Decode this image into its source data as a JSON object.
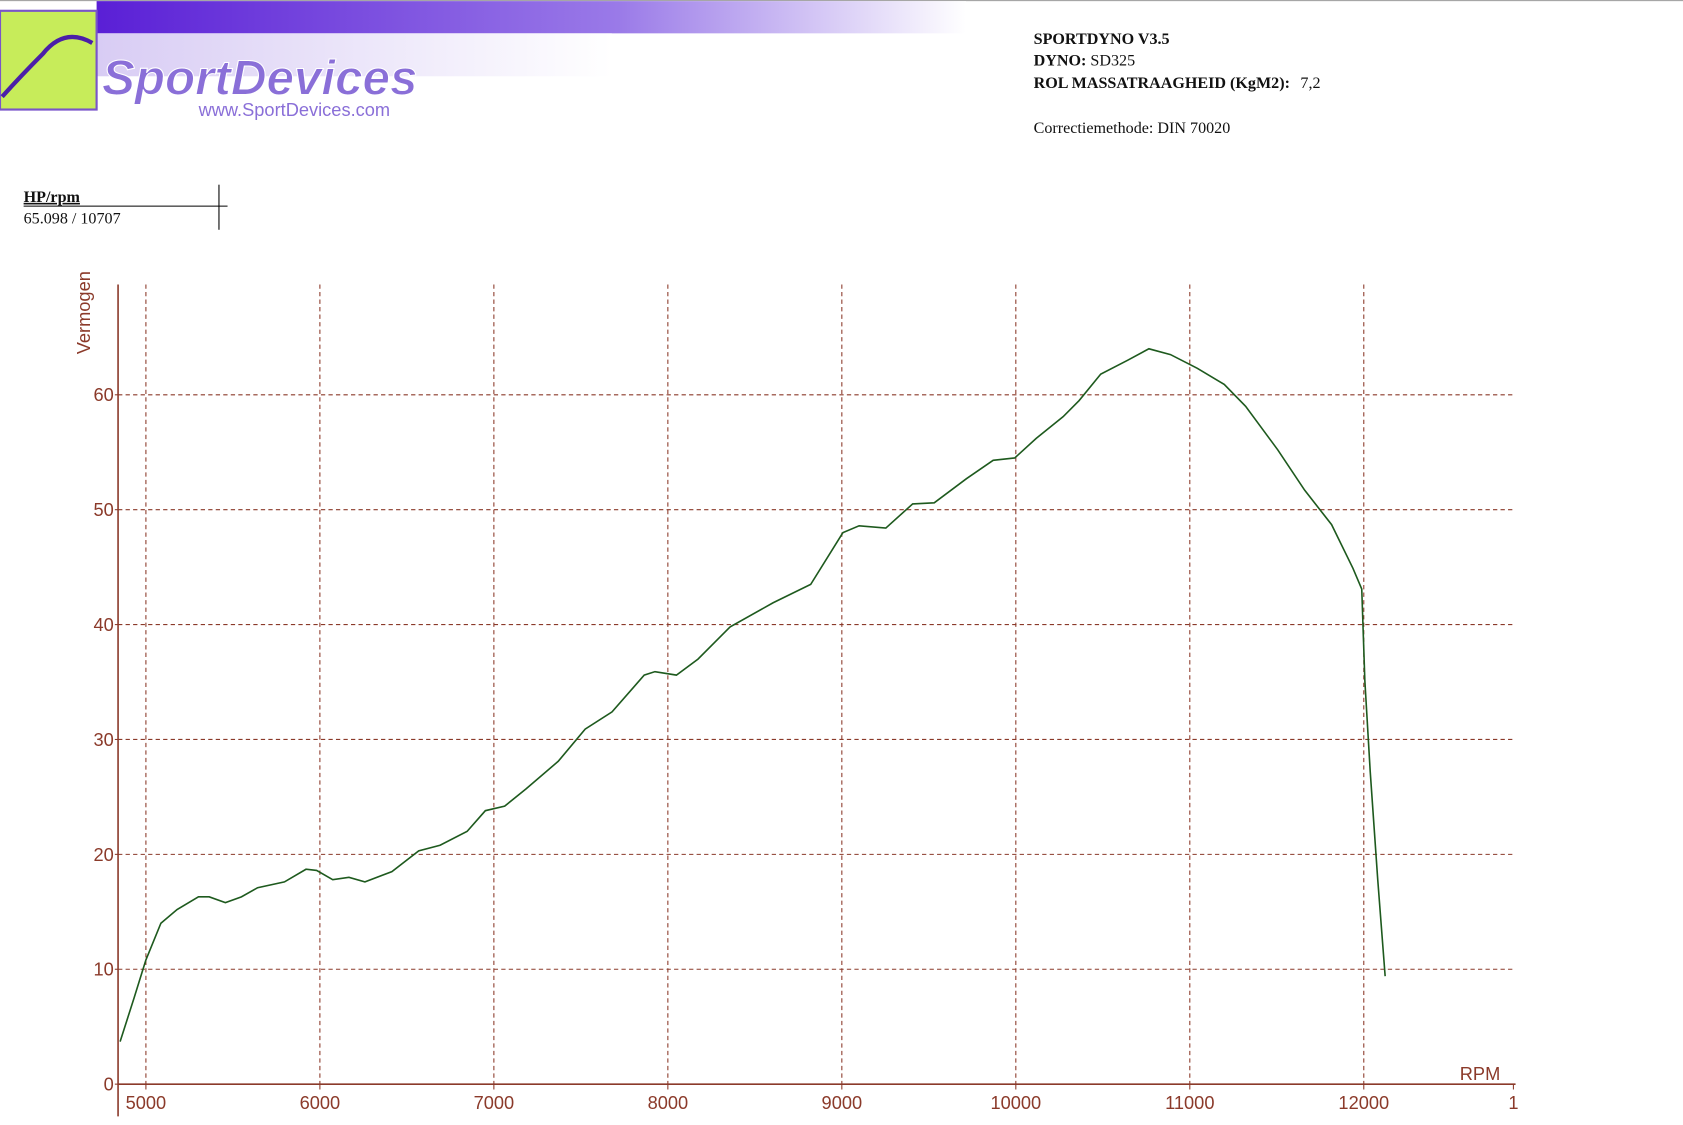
{
  "header": {
    "logo": "SportDevices",
    "logo_url": "www.SportDevices.com",
    "product": "SPORTDYNO V3.5",
    "dyno_label": "DYNO:",
    "dyno": "SD325",
    "inertia_label": "ROL MASSATRAAGHEID (KgM2):",
    "inertia": "7,2",
    "correction": "Correctiemethode: DIN 70020"
  },
  "readout": {
    "label": "HP/rpm",
    "value": "65.098 / 10707"
  },
  "chart_data": {
    "type": "line",
    "y_label": "Vermogen",
    "x_label": "RPM",
    "xlim": [
      4840,
      12860
    ],
    "ylim": [
      0,
      69.6
    ],
    "xticks": [
      5000,
      6000,
      7000,
      8000,
      9000,
      10000,
      11000,
      12000,
      {
        "value": 12860,
        "label": "1"
      }
    ],
    "yticks": [
      0,
      10,
      20,
      30,
      40,
      50,
      60
    ],
    "grid": true,
    "x": [
      4852,
      4932,
      5000,
      5086,
      5179,
      5302,
      5364,
      5457,
      5549,
      5642,
      5796,
      5920,
      5981,
      6074,
      6167,
      6259,
      6414,
      6568,
      6691,
      6846,
      6951,
      7062,
      7185,
      7370,
      7525,
      7679,
      7864,
      7926,
      8049,
      8173,
      8358,
      8605,
      8821,
      9006,
      9099,
      9253,
      9407,
      9531,
      9716,
      9870,
      9994,
      10117,
      10272,
      10364,
      10488,
      10642,
      10765,
      10889,
      11043,
      11198,
      11321,
      11506,
      11660,
      11815,
      11938,
      11988,
      12006,
      12037,
      12080,
      12123
    ],
    "series": [
      {
        "name": "Vermogen",
        "color": "#1e5a1e",
        "values": [
          3.7,
          7.5,
          10.8,
          14,
          15.2,
          16.3,
          16.3,
          15.8,
          16.3,
          17.1,
          17.6,
          18.7,
          18.6,
          17.8,
          18.0,
          17.6,
          18.5,
          20.3,
          20.8,
          22.0,
          23.8,
          24.2,
          25.7,
          28.1,
          30.9,
          32.4,
          35.6,
          35.9,
          35.6,
          37,
          39.8,
          41.9,
          43.5,
          48.0,
          48.6,
          48.4,
          50.5,
          50.6,
          52.7,
          54.3,
          54.5,
          56.2,
          58.1,
          59.5,
          61.8,
          63,
          64,
          63.5,
          62.3,
          60.9,
          59.0,
          55.2,
          51.7,
          48.7,
          44.9,
          43.1,
          35.1,
          27.2,
          17.8,
          9.4
        ]
      }
    ]
  }
}
